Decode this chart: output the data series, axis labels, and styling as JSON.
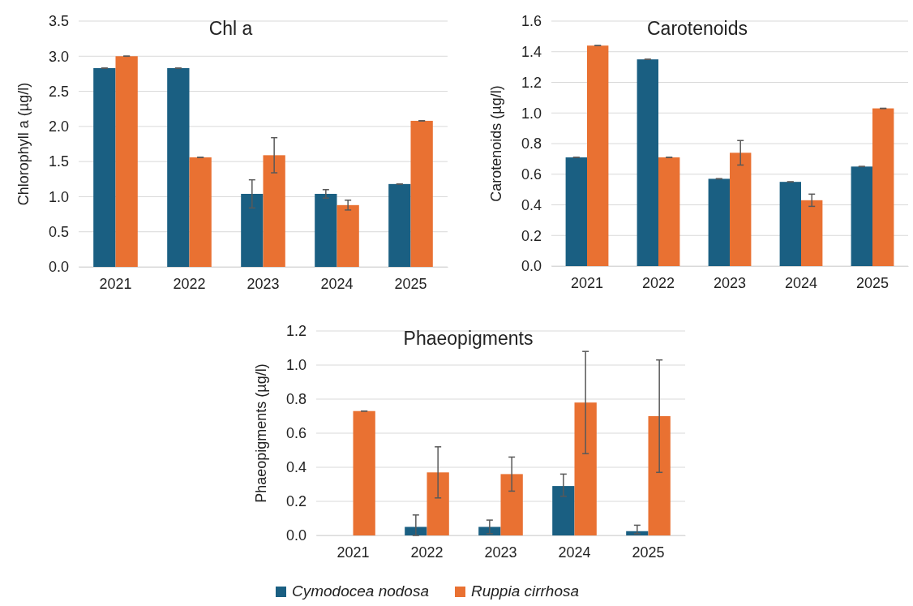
{
  "chart_data": [
    {
      "type": "bar",
      "title": "Chl a",
      "ylabel": "Chlorophyll a (µg/l)",
      "categories": [
        "2021",
        "2022",
        "2023",
        "2024",
        "2025"
      ],
      "ylim": [
        0,
        3.5
      ],
      "yticks": [
        {
          "value": 0,
          "label": "0.0"
        },
        {
          "value": 0.5,
          "label": "0.5"
        },
        {
          "value": 1,
          "label": "1.0"
        },
        {
          "value": 1.5,
          "label": "1.5"
        },
        {
          "value": 2,
          "label": "2.0"
        },
        {
          "value": 2.5,
          "label": "2.5"
        },
        {
          "value": 3,
          "label": "3.0"
        },
        {
          "value": 3.5,
          "label": "3.5"
        }
      ],
      "grid": "y",
      "legend": false,
      "series": [
        {
          "color": "#1a5f82",
          "values": [
            2.83,
            2.83,
            1.04,
            1.04,
            1.18
          ],
          "errors": [
            0,
            0,
            0.2,
            0.06,
            0
          ]
        },
        {
          "color": "#e97132",
          "values": [
            3.0,
            1.56,
            1.59,
            0.88,
            2.08
          ],
          "errors": [
            0,
            0,
            0.25,
            0.07,
            0
          ]
        }
      ]
    },
    {
      "type": "bar",
      "title": "Carotenoids",
      "ylabel": "Carotenoids (µg/l)",
      "categories": [
        "2021",
        "2022",
        "2023",
        "2024",
        "2025"
      ],
      "ylim": [
        0,
        1.6
      ],
      "yticks": [
        {
          "value": 0,
          "label": "0.0"
        },
        {
          "value": 0.2,
          "label": "0.2"
        },
        {
          "value": 0.4,
          "label": "0.4"
        },
        {
          "value": 0.6,
          "label": "0.6"
        },
        {
          "value": 0.8,
          "label": "0.8"
        },
        {
          "value": 1,
          "label": "1.0"
        },
        {
          "value": 1.2,
          "label": "1.2"
        },
        {
          "value": 1.4,
          "label": "1.4"
        },
        {
          "value": 1.6,
          "label": "1.6"
        }
      ],
      "grid": "y",
      "legend": false,
      "series": [
        {
          "color": "#1a5f82",
          "values": [
            0.71,
            1.35,
            0.57,
            0.55,
            0.65
          ],
          "errors": [
            0,
            0,
            0,
            0,
            0
          ]
        },
        {
          "color": "#e97132",
          "values": [
            1.44,
            0.71,
            0.74,
            0.43,
            1.03
          ],
          "errors": [
            0,
            0,
            0.08,
            0.04,
            0
          ]
        }
      ]
    },
    {
      "type": "bar",
      "title": "Phaeopigments",
      "ylabel": "Phaeopigments (µg/l)",
      "categories": [
        "2021",
        "2022",
        "2023",
        "2024",
        "2025"
      ],
      "ylim": [
        0,
        1.2
      ],
      "yticks": [
        {
          "value": 0,
          "label": "0.0"
        },
        {
          "value": 0.2,
          "label": "0.2"
        },
        {
          "value": 0.4,
          "label": "0.4"
        },
        {
          "value": 0.6,
          "label": "0.6"
        },
        {
          "value": 0.8,
          "label": "0.8"
        },
        {
          "value": 1,
          "label": "1.0"
        },
        {
          "value": 1.2,
          "label": "1.2"
        }
      ],
      "grid": "y",
      "legend": "bottom",
      "series": [
        {
          "name": "Cymodocea nodosa",
          "color": "#1a5f82",
          "values": [
            0,
            0.05,
            0.05,
            0.29,
            0.025
          ],
          "errors": [
            null,
            [
              0,
              0.12
            ],
            [
              0.01,
              0.09
            ],
            [
              0.23,
              0.36
            ],
            [
              0.01,
              0.06
            ]
          ]
        },
        {
          "name": "Ruppia cirrhosa",
          "color": "#e97132",
          "values": [
            0.73,
            0.37,
            0.36,
            0.78,
            0.7
          ],
          "errors": [
            0,
            0.15,
            0.1,
            0.3,
            0.33
          ]
        }
      ]
    }
  ]
}
